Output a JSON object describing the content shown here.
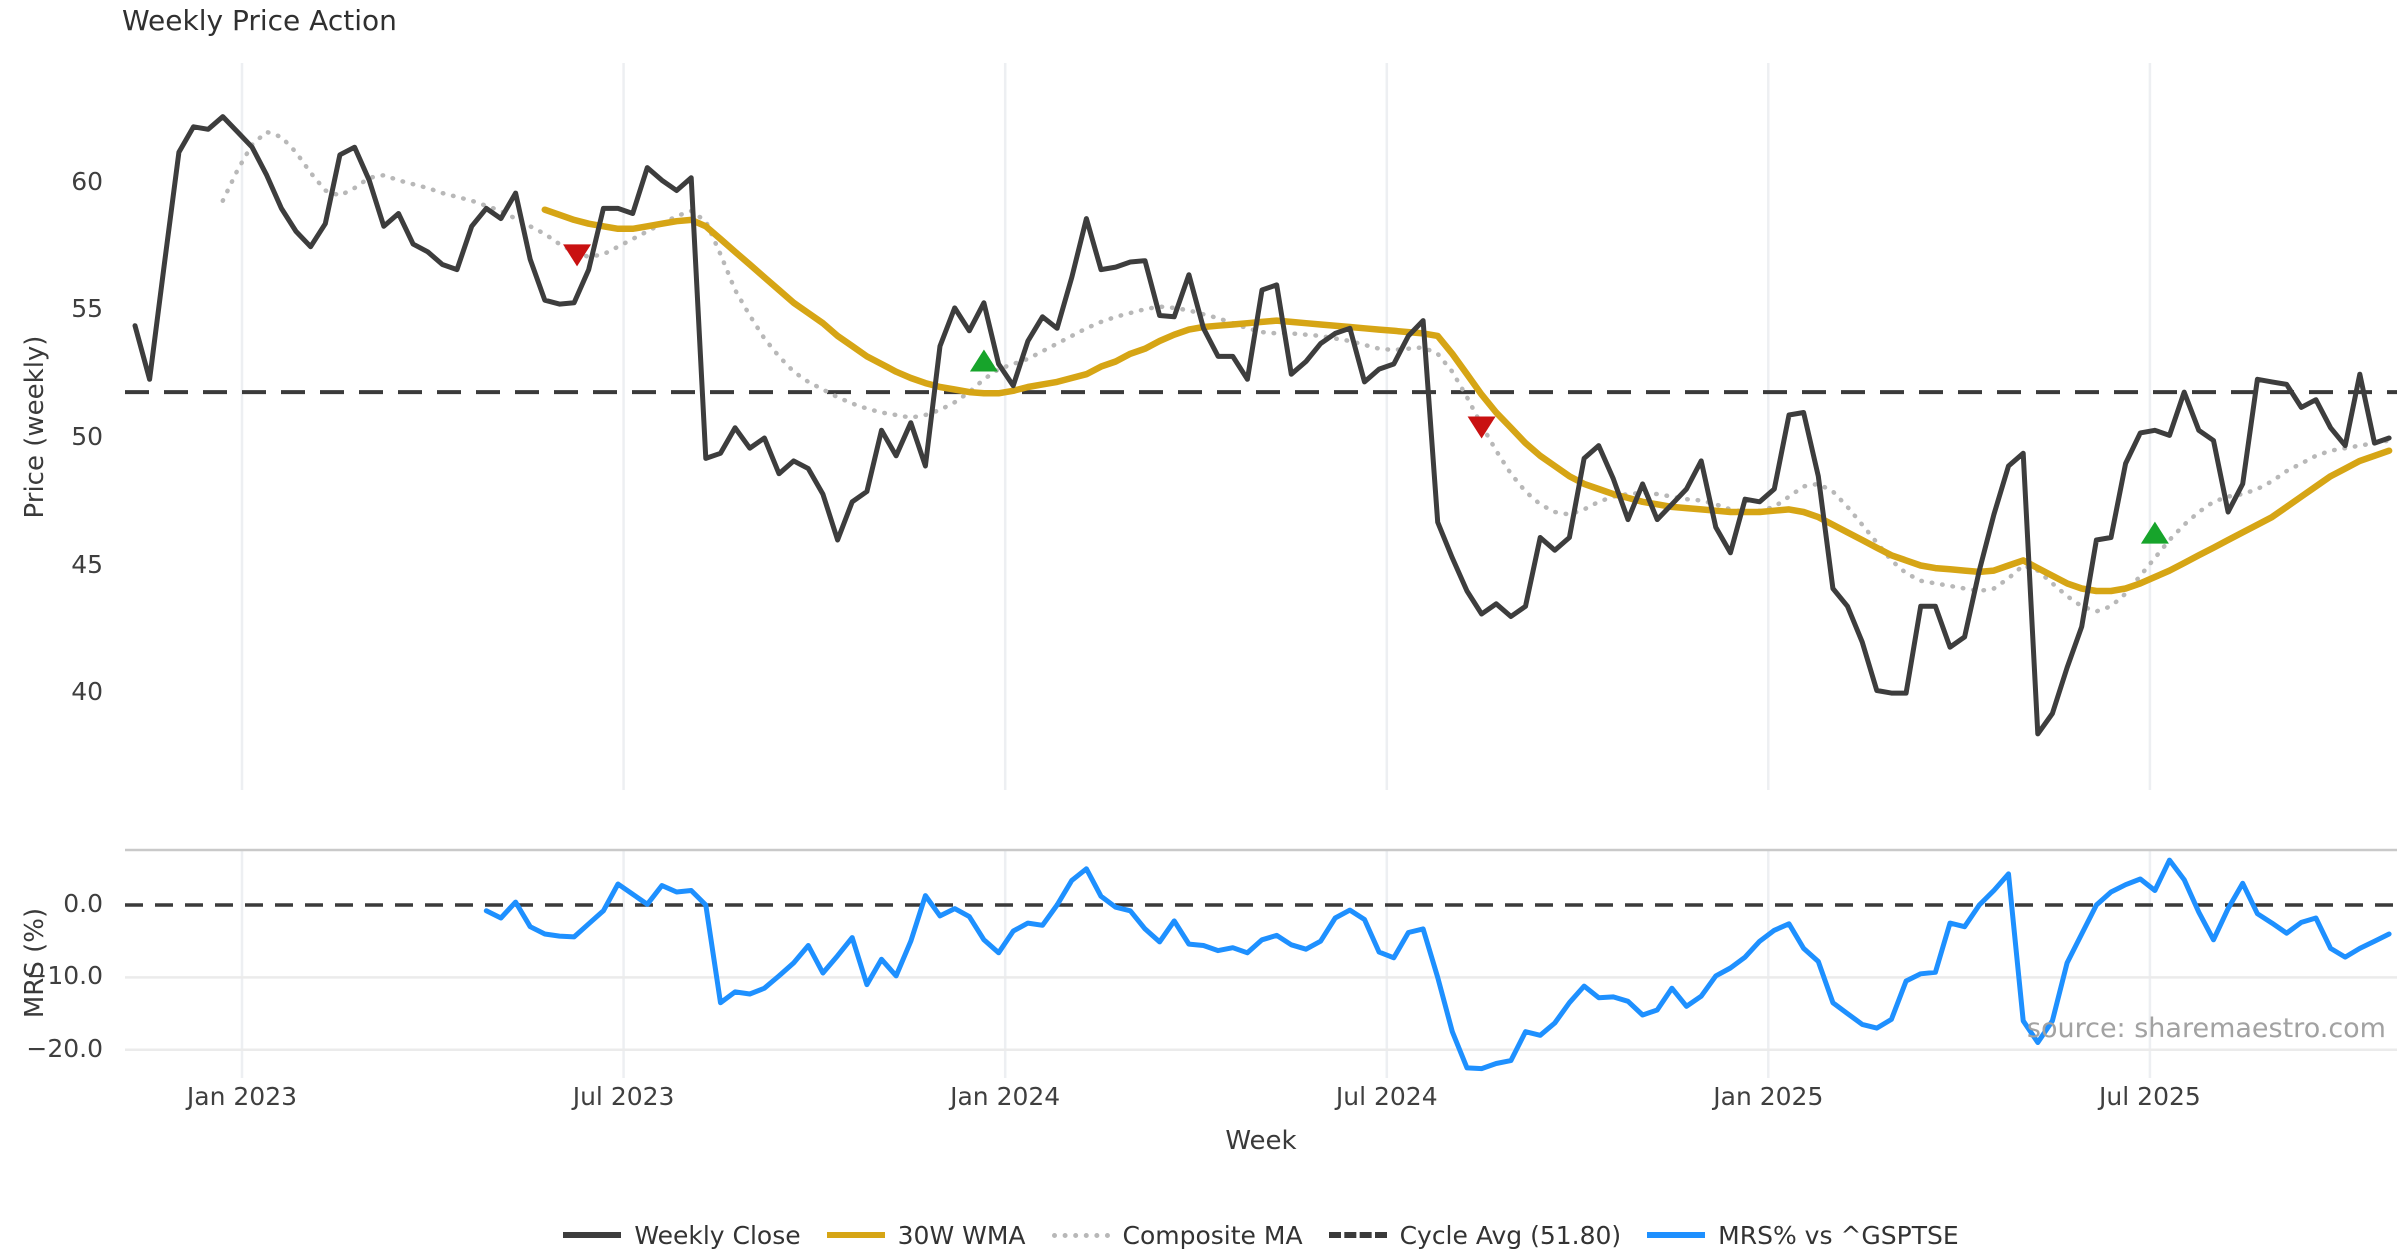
{
  "title": "Weekly Price Action",
  "source_note": "source: sharemaestro.com",
  "xlabel": "Week",
  "top_panel": {
    "ylabel": "Price (weekly)"
  },
  "bottom_panel": {
    "ylabel": "MRS (%)"
  },
  "legend": [
    {
      "label": "Weekly Close",
      "color": "#3d3d3d",
      "style": "solid"
    },
    {
      "label": "30W WMA",
      "color": "#d6a515",
      "style": "solid"
    },
    {
      "label": "Composite MA",
      "color": "#b8b8b8",
      "style": "dotted"
    },
    {
      "label": "Cycle Avg (51.80)",
      "color": "#3a3a3a",
      "style": "dashed"
    },
    {
      "label": "MRS% vs ^GSPTSE",
      "color": "#1e90ff",
      "style": "solid"
    }
  ],
  "chart_data": {
    "type": "line",
    "title": "Weekly Price Action",
    "xlabel": "Week",
    "x_ticks": [
      {
        "week_index": 7.31,
        "label": "Jan 2023"
      },
      {
        "week_index": 33.38,
        "label": "Jul 2023"
      },
      {
        "week_index": 59.45,
        "label": "Jan 2024"
      },
      {
        "week_index": 85.52,
        "label": "Jul 2024"
      },
      {
        "week_index": 111.59,
        "label": "Jan 2025"
      },
      {
        "week_index": 137.66,
        "label": "Jul 2025"
      }
    ],
    "total_weeks": 155,
    "panels": [
      {
        "id": "price",
        "ylabel": "Price (weekly)",
        "ylim": [
          36.2,
          64.7
        ],
        "yticks": [
          {
            "v": 40,
            "label": "40"
          },
          {
            "v": 45,
            "label": "45"
          },
          {
            "v": 50,
            "label": "50"
          },
          {
            "v": 55,
            "label": "55"
          },
          {
            "v": 60,
            "label": "60"
          }
        ],
        "cycle_avg": 51.8,
        "series": [
          {
            "name": "Weekly Close",
            "color": "#3d3d3d",
            "style": "solid",
            "width": 5,
            "start_index": 0,
            "values": [
              54.4,
              52.3,
              56.8,
              61.2,
              62.2,
              62.1,
              62.6,
              62.0,
              61.4,
              60.3,
              59.0,
              58.1,
              57.5,
              58.4,
              61.1,
              61.4,
              60.1,
              58.3,
              58.8,
              57.6,
              57.3,
              56.8,
              56.6,
              58.3,
              59.0,
              58.6,
              59.6,
              57.0,
              55.4,
              55.25,
              55.3,
              56.6,
              59.0,
              59.0,
              58.8,
              60.6,
              60.1,
              59.7,
              60.2,
              49.2,
              49.4,
              50.4,
              49.6,
              50.0,
              48.6,
              49.1,
              48.8,
              47.8,
              46.0,
              47.5,
              47.9,
              50.3,
              49.3,
              50.6,
              48.9,
              53.6,
              55.1,
              54.2,
              55.3,
              52.9,
              52.05,
              53.8,
              54.75,
              54.3,
              56.3,
              58.6,
              56.6,
              56.7,
              56.9,
              56.95,
              54.8,
              54.75,
              56.4,
              54.3,
              53.2,
              53.2,
              52.3,
              55.8,
              56.0,
              52.5,
              53.0,
              53.7,
              54.1,
              54.3,
              52.2,
              52.7,
              52.9,
              54.0,
              54.6,
              46.7,
              45.3,
              44.0,
              43.1,
              43.5,
              43.0,
              43.4,
              46.1,
              45.6,
              46.1,
              49.2,
              49.7,
              48.4,
              46.8,
              48.2,
              46.8,
              47.4,
              48.0,
              49.1,
              46.5,
              45.5,
              47.6,
              47.5,
              48.0,
              50.9,
              51.0,
              48.5,
              44.1,
              43.4,
              42.0,
              40.1,
              40.0,
              40.0,
              43.4,
              43.4,
              41.8,
              42.2,
              44.8,
              47.0,
              48.9,
              49.4,
              38.4,
              39.2,
              41.0,
              42.6,
              46.0,
              46.1,
              49.0,
              50.2,
              50.3,
              50.1,
              51.8,
              50.3,
              49.9,
              47.1,
              48.2,
              52.3,
              52.2,
              52.1,
              51.2,
              51.5,
              50.4,
              49.7,
              52.5,
              49.8,
              50.0
            ]
          },
          {
            "name": "30W WMA",
            "color": "#d6a515",
            "style": "solid",
            "width": 6.5,
            "start_index": 28,
            "values": [
              58.95,
              58.75,
              58.55,
              58.4,
              58.3,
              58.2,
              58.2,
              58.3,
              58.4,
              58.5,
              58.55,
              58.3,
              57.8,
              57.3,
              56.8,
              56.3,
              55.8,
              55.3,
              54.9,
              54.5,
              54.0,
              53.6,
              53.2,
              52.9,
              52.6,
              52.35,
              52.15,
              52.0,
              51.9,
              51.8,
              51.75,
              51.75,
              51.85,
              52.0,
              52.1,
              52.2,
              52.35,
              52.5,
              52.8,
              53.0,
              53.3,
              53.5,
              53.8,
              54.05,
              54.25,
              54.35,
              54.4,
              54.45,
              54.5,
              54.55,
              54.6,
              54.55,
              54.5,
              54.45,
              54.4,
              54.35,
              54.3,
              54.25,
              54.2,
              54.15,
              54.1,
              54.0,
              53.3,
              52.5,
              51.7,
              51.0,
              50.4,
              49.8,
              49.3,
              48.9,
              48.5,
              48.2,
              48.0,
              47.8,
              47.65,
              47.5,
              47.4,
              47.3,
              47.25,
              47.2,
              47.15,
              47.1,
              47.1,
              47.1,
              47.15,
              47.2,
              47.1,
              46.9,
              46.6,
              46.3,
              46.0,
              45.7,
              45.4,
              45.2,
              45.0,
              44.9,
              44.85,
              44.8,
              44.75,
              44.8,
              45.0,
              45.2,
              44.9,
              44.6,
              44.3,
              44.1,
              44.0,
              44.0,
              44.1,
              44.3,
              44.55,
              44.8,
              45.1,
              45.4,
              45.7,
              46.0,
              46.3,
              46.6,
              46.9,
              47.3,
              47.7,
              48.1,
              48.5,
              48.8,
              49.1,
              49.3,
              49.5
            ]
          },
          {
            "name": "Composite MA",
            "color": "#b8b8b8",
            "style": "dotted",
            "width": 4.5,
            "start_index": 6,
            "values": [
              59.3,
              60.5,
              61.5,
              62.0,
              61.8,
              61.2,
              60.4,
              59.7,
              59.5,
              59.8,
              60.2,
              60.3,
              60.1,
              59.95,
              59.8,
              59.6,
              59.45,
              59.3,
              59.1,
              58.9,
              58.6,
              58.3,
              58.0,
              57.6,
              57.3,
              57.1,
              57.2,
              57.5,
              57.8,
              58.1,
              58.4,
              58.7,
              58.9,
              58.5,
              57.2,
              55.8,
              54.8,
              53.9,
              53.2,
              52.6,
              52.2,
              51.9,
              51.6,
              51.35,
              51.15,
              51.0,
              50.9,
              50.8,
              50.9,
              51.1,
              51.4,
              51.8,
              52.3,
              52.7,
              52.9,
              53.1,
              53.4,
              53.7,
              54.0,
              54.3,
              54.55,
              54.75,
              54.9,
              55.05,
              55.15,
              55.1,
              55.0,
              54.85,
              54.7,
              54.5,
              54.3,
              54.15,
              54.1,
              54.1,
              54.05,
              54.0,
              53.9,
              53.8,
              53.65,
              53.5,
              53.45,
              53.5,
              53.55,
              53.3,
              52.6,
              51.6,
              50.5,
              49.5,
              48.6,
              47.9,
              47.4,
              47.1,
              47.0,
              47.2,
              47.5,
              47.7,
              47.8,
              47.85,
              47.8,
              47.7,
              47.6,
              47.55,
              47.4,
              47.2,
              47.1,
              47.15,
              47.3,
              47.7,
              48.1,
              48.2,
              47.9,
              47.3,
              46.6,
              45.9,
              45.2,
              44.7,
              44.4,
              44.3,
              44.2,
              44.1,
              44.0,
              44.1,
              44.5,
              45.0,
              44.8,
              44.3,
              43.8,
              43.4,
              43.2,
              43.4,
              43.9,
              44.6,
              45.3,
              46.0,
              46.6,
              47.1,
              47.5,
              47.7,
              47.8,
              48.0,
              48.3,
              48.7,
              49.0,
              49.3,
              49.5,
              49.6,
              49.7,
              49.8,
              49.9
            ]
          },
          {
            "name": "Cycle Avg (51.80)",
            "color": "#3a3a3a",
            "style": "dashed",
            "width": 4,
            "const_value": 51.8
          }
        ],
        "markers": {
          "sell": {
            "color": "#c91111",
            "shape": "triangle-down",
            "points": [
              [
                30.2,
                57.2
              ],
              [
                92,
                50.45
              ]
            ]
          },
          "buy": {
            "color": "#17a42b",
            "shape": "triangle-up",
            "points": [
              [
                58,
                53.0
              ],
              [
                138,
                46.25
              ]
            ]
          }
        }
      },
      {
        "id": "mrs",
        "ylabel": "MRS (%)",
        "ylim": [
          -23.9,
          7.6
        ],
        "yticks": [
          {
            "v": 0,
            "label": "0.0"
          },
          {
            "v": -10,
            "label": "−10.0"
          },
          {
            "v": -20,
            "label": "−20.0"
          }
        ],
        "zero_line": 0,
        "gridlines": [
          -10,
          -20
        ],
        "series": [
          {
            "name": "MRS% vs ^GSPTSE",
            "color": "#1e90ff",
            "style": "solid",
            "width": 5,
            "start_index": 24,
            "values": [
              -0.8,
              -1.8,
              0.4,
              -3.0,
              -4.0,
              -4.3,
              -4.4,
              -2.6,
              -0.8,
              2.9,
              1.5,
              0.1,
              2.7,
              1.8,
              2.0,
              0.0,
              -13.5,
              -12.0,
              -12.3,
              -11.5,
              -9.8,
              -8.0,
              -5.6,
              -9.4,
              -7.0,
              -4.5,
              -11.0,
              -7.5,
              -9.8,
              -5.0,
              1.3,
              -1.5,
              -0.5,
              -1.6,
              -4.8,
              -6.6,
              -3.6,
              -2.5,
              -2.8,
              0.0,
              3.4,
              5.0,
              1.2,
              -0.3,
              -0.8,
              -3.3,
              -5.1,
              -2.2,
              -5.4,
              -5.6,
              -6.3,
              -5.9,
              -6.6,
              -4.8,
              -4.2,
              -5.5,
              -6.1,
              -5.0,
              -1.8,
              -0.7,
              -2.0,
              -6.5,
              -7.3,
              -3.8,
              -3.3,
              -10.0,
              -17.5,
              -22.5,
              -22.6,
              -21.9,
              -21.5,
              -17.5,
              -18.0,
              -16.3,
              -13.5,
              -11.2,
              -12.8,
              -12.7,
              -13.3,
              -15.2,
              -14.5,
              -11.5,
              -14.0,
              -12.6,
              -9.8,
              -8.7,
              -7.2,
              -5.0,
              -3.5,
              -2.6,
              -6.0,
              -7.8,
              -13.5,
              -15.0,
              -16.5,
              -17.0,
              -15.8,
              -10.5,
              -9.5,
              -9.3,
              -2.5,
              -3.0,
              0.0,
              2.0,
              4.3,
              -16.0,
              -19.0,
              -16.0,
              -8.0,
              -4.0,
              0.0,
              1.8,
              2.8,
              3.6,
              2.0,
              6.2,
              3.5,
              -1.0,
              -4.8,
              -0.5,
              3.0,
              -1.2,
              -2.5,
              -3.9,
              -2.4,
              -1.8,
              -6.0,
              -7.2,
              -6.0,
              -5.0,
              -4.0
            ]
          }
        ]
      }
    ],
    "colors": {
      "weekly_close": "#3d3d3d",
      "wma": "#d6a515",
      "composite": "#b8b8b8",
      "cycle_avg": "#3a3a3a",
      "mrs": "#1e90ff",
      "sell_marker": "#c91111",
      "buy_marker": "#17a42b",
      "gridline": "#edeff2",
      "hgridline": "#ebebeb",
      "panel_spine": "#c9c9c9"
    }
  }
}
